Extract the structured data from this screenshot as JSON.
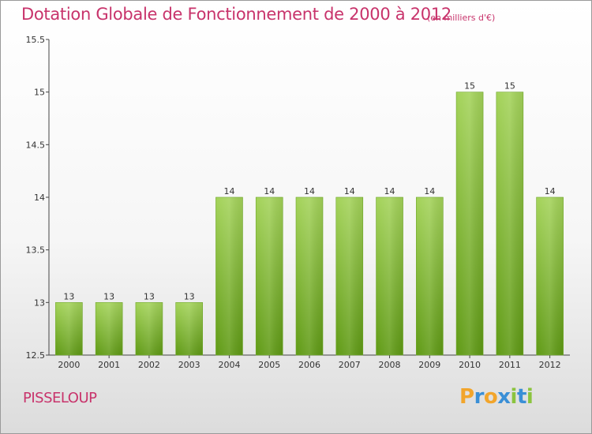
{
  "header": {
    "title": "Dotation Globale de Fonctionnement de 2000 à 2012",
    "unit_note": "(en milliers d'€)"
  },
  "footer": {
    "town": "PISSELOUP",
    "logo_letters": [
      "P",
      "r",
      "o",
      "x",
      "i",
      "t",
      "i"
    ],
    "logo_colors": [
      "#f2a52b",
      "#3a8fd6",
      "#f2a52b",
      "#3a8fd6",
      "#8bc43f",
      "#3a8fd6",
      "#8bc43f"
    ]
  },
  "chart_data": {
    "type": "bar",
    "title": "Dotation Globale de Fonctionnement de 2000 à 2012",
    "subtitle": "(en milliers d'€)",
    "categories": [
      "2000",
      "2001",
      "2002",
      "2003",
      "2004",
      "2005",
      "2006",
      "2007",
      "2008",
      "2009",
      "2010",
      "2011",
      "2012"
    ],
    "values": [
      13,
      13,
      13,
      13,
      14,
      14,
      14,
      14,
      14,
      14,
      15,
      15,
      14
    ],
    "ylim": [
      12.5,
      15.5
    ],
    "yticks": [
      "12.5",
      "13",
      "13.5",
      "14",
      "14.5",
      "15",
      "15.5"
    ],
    "grid": false,
    "bar_color_top": "#a4d35a",
    "bar_color_bottom": "#5f9a14"
  }
}
